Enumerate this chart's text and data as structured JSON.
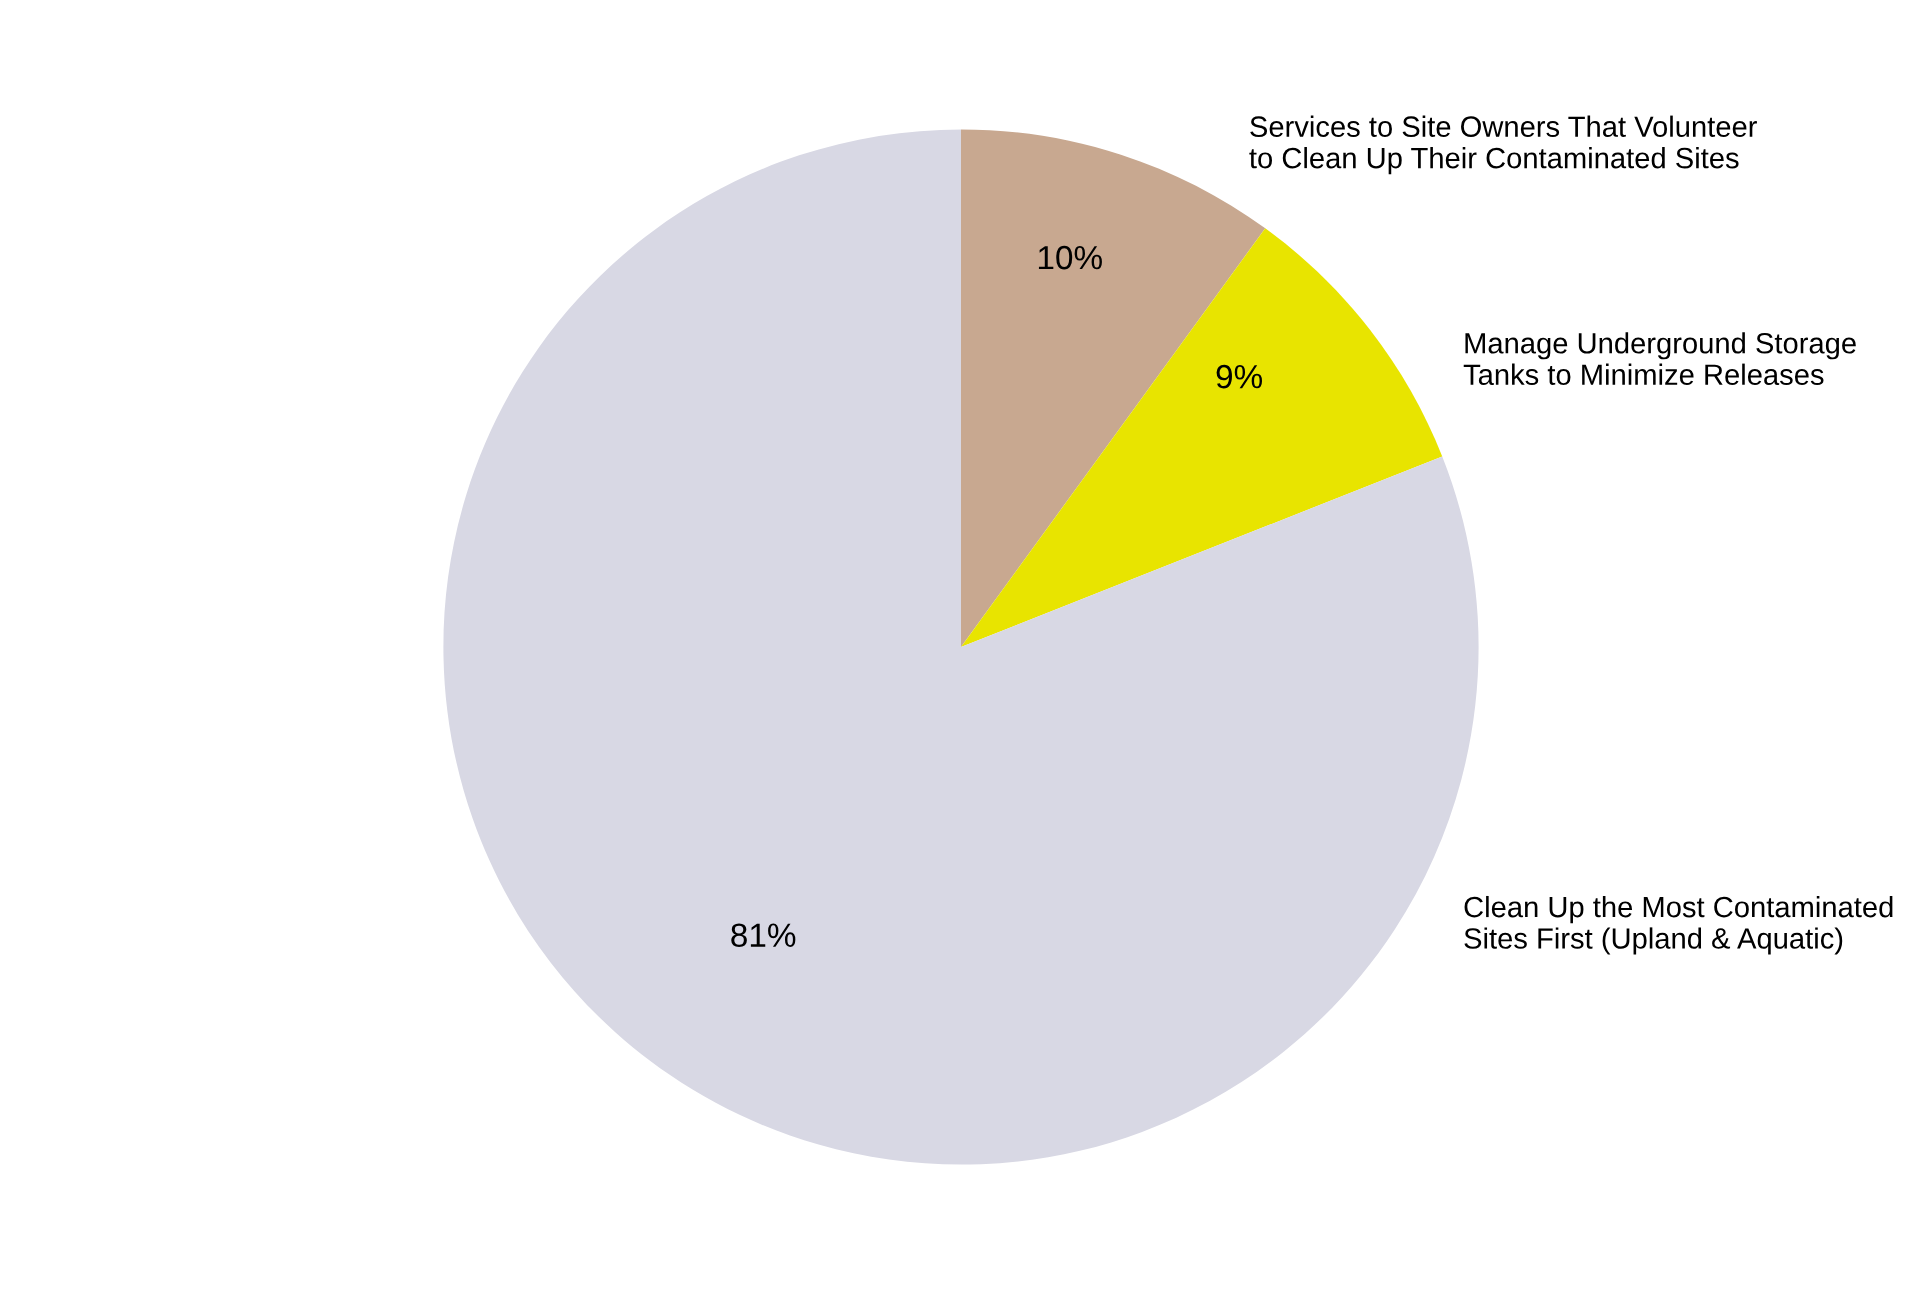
{
  "chart_data": {
    "type": "pie",
    "categories": [
      "Services to Site Owners That Volunteer\nto Clean Up Their Contaminated Sites",
      "Manage Underground Storage\nTanks to Minimize Releases",
      "Clean Up the Most Contaminated\nSites First (Upland & Aquatic)"
    ],
    "values": [
      10,
      9,
      81
    ],
    "value_labels": [
      "10%",
      "9%",
      "81%"
    ],
    "colors": [
      "#c8a890",
      "#e8e400",
      "#d8d8e4"
    ],
    "legend": false
  }
}
